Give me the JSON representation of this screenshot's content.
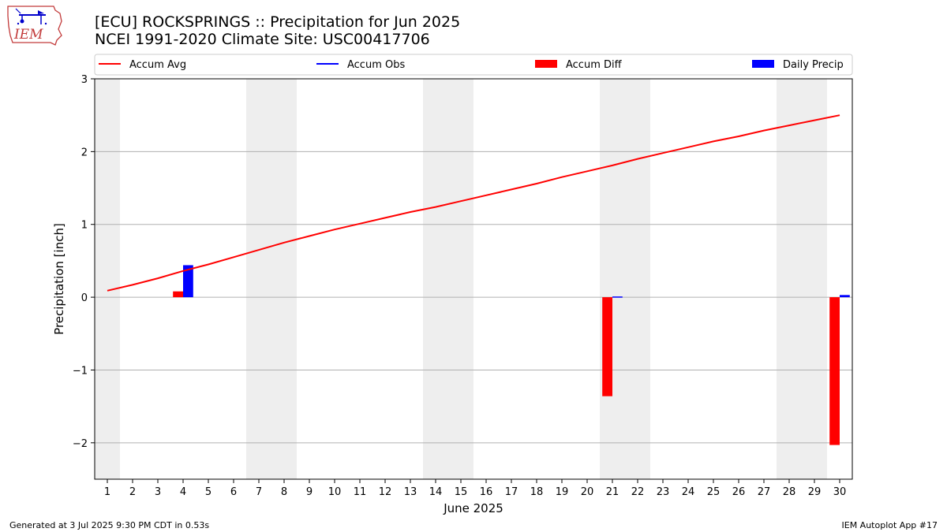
{
  "header": {
    "title_line1": "[ECU] ROCKSPRINGS :: Precipitation for Jun 2025",
    "title_line2": "NCEI 1991-2020 Climate Site: USC00417706"
  },
  "logo": {
    "text": "IEM"
  },
  "footer": {
    "generated": "Generated at 3 Jul 2025 9:30 PM CDT in 0.53s",
    "app": "IEM Autoplot App #17"
  },
  "chart_data": {
    "type": "bar",
    "xlabel": "June 2025",
    "ylabel": "Precipitation [inch]",
    "xlim": [
      0.5,
      30.5
    ],
    "ylim": [
      -2.5,
      3.0
    ],
    "yticks": [
      -2,
      -1,
      0,
      1,
      2,
      3
    ],
    "ytick_labels": [
      "−2",
      "−1",
      "0",
      "1",
      "2",
      "3"
    ],
    "days": [
      1,
      2,
      3,
      4,
      5,
      6,
      7,
      8,
      9,
      10,
      11,
      12,
      13,
      14,
      15,
      16,
      17,
      18,
      19,
      20,
      21,
      22,
      23,
      24,
      25,
      26,
      27,
      28,
      29,
      30
    ],
    "weekend_days": [
      1,
      7,
      8,
      14,
      15,
      21,
      22,
      28,
      29
    ],
    "grid": "horizontal",
    "legend": {
      "placement": "top",
      "entries": [
        {
          "name": "Accum Avg",
          "kind": "line",
          "color": "#ff0000"
        },
        {
          "name": "Accum Obs",
          "kind": "line",
          "color": "#0000ff"
        },
        {
          "name": "Accum Diff",
          "kind": "bar",
          "color": "#ff0000"
        },
        {
          "name": "Daily Precip",
          "kind": "bar",
          "color": "#0000ff"
        }
      ]
    },
    "series": [
      {
        "name": "Accum Avg",
        "type": "line",
        "color": "#ff0000",
        "values": [
          0.09,
          0.17,
          0.26,
          0.36,
          0.45,
          0.55,
          0.65,
          0.75,
          0.84,
          0.93,
          1.01,
          1.09,
          1.17,
          1.24,
          1.32,
          1.4,
          1.48,
          1.56,
          1.65,
          1.73,
          1.81,
          1.9,
          1.98,
          2.06,
          2.14,
          2.21,
          2.29,
          2.36,
          2.43,
          2.5
        ]
      },
      {
        "name": "Accum Diff",
        "type": "bar",
        "color": "#ff0000",
        "points": [
          {
            "day": 4,
            "value": 0.08
          },
          {
            "day": 21,
            "value": -1.36
          },
          {
            "day": 30,
            "value": -2.03
          }
        ]
      },
      {
        "name": "Daily Precip",
        "type": "bar",
        "color": "#0000ff",
        "points": [
          {
            "day": 4,
            "value": 0.44
          },
          {
            "day": 21,
            "value": 0.01
          },
          {
            "day": 30,
            "value": 0.03
          }
        ]
      }
    ]
  }
}
